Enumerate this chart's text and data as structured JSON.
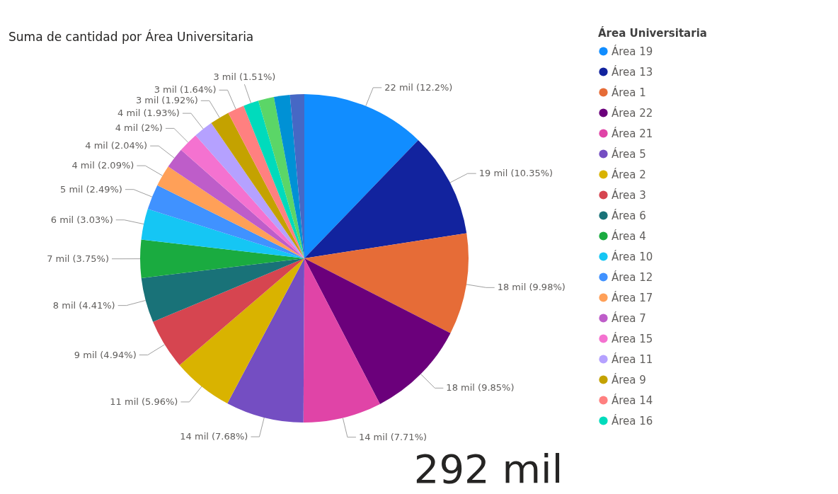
{
  "chart_data": {
    "type": "pie",
    "title": "Suma de cantidad por Área Universitaria",
    "legend_title": "Área Universitaria",
    "legend": "right",
    "categories": [
      "Área 19",
      "Área 13",
      "Área 1",
      "Área 22",
      "Área 21",
      "Área 5",
      "Área 2",
      "Área 3",
      "Área 6",
      "Área 4",
      "Área 10",
      "Área 12",
      "Área 17",
      "Área 7",
      "Área 15",
      "Área 11",
      "Área 9",
      "Área 14",
      "Área 16",
      null,
      null,
      null
    ],
    "values": [
      12.2,
      10.35,
      9.98,
      9.85,
      7.71,
      7.68,
      5.96,
      4.94,
      4.41,
      3.75,
      3.03,
      2.49,
      2.09,
      2.04,
      2,
      1.93,
      1.92,
      1.64,
      1.51,
      1.55,
      1.57,
      1.4
    ],
    "colors": [
      "#118dff",
      "#12239e",
      "#e66c37",
      "#6b007b",
      "#e044a7",
      "#744ec2",
      "#d9b300",
      "#d64550",
      "#197278",
      "#1aab40",
      "#15c6f4",
      "#4092ff",
      "#ffa058",
      "#be5dc9",
      "#f472d0",
      "#b5a1ff",
      "#c4a200",
      "#ff8080",
      "#00dbbc",
      "#5bd667",
      "#0091d5",
      "#4668c5"
    ],
    "value_labels": [
      "22 mil (12.2%)",
      "19 mil (10.35%)",
      "18 mil (9.98%)",
      "18 mil (9.85%)",
      "14 mil (7.71%)",
      "14 mil (7.68%)",
      "11 mil (5.96%)",
      "9 mil (4.94%)",
      "8 mil (4.41%)",
      "7 mil (3.75%)",
      "6 mil (3.03%)",
      "5 mil (2.49%)",
      "4 mil (2.09%)",
      "4 mil (2.04%)",
      "4 mil (2%)",
      "4 mil (1.93%)",
      "3 mil (1.92%)",
      "3 mil (1.64%)",
      "3 mil (1.51%)",
      null,
      null,
      null
    ],
    "annotations": [
      "292 mil"
    ]
  }
}
